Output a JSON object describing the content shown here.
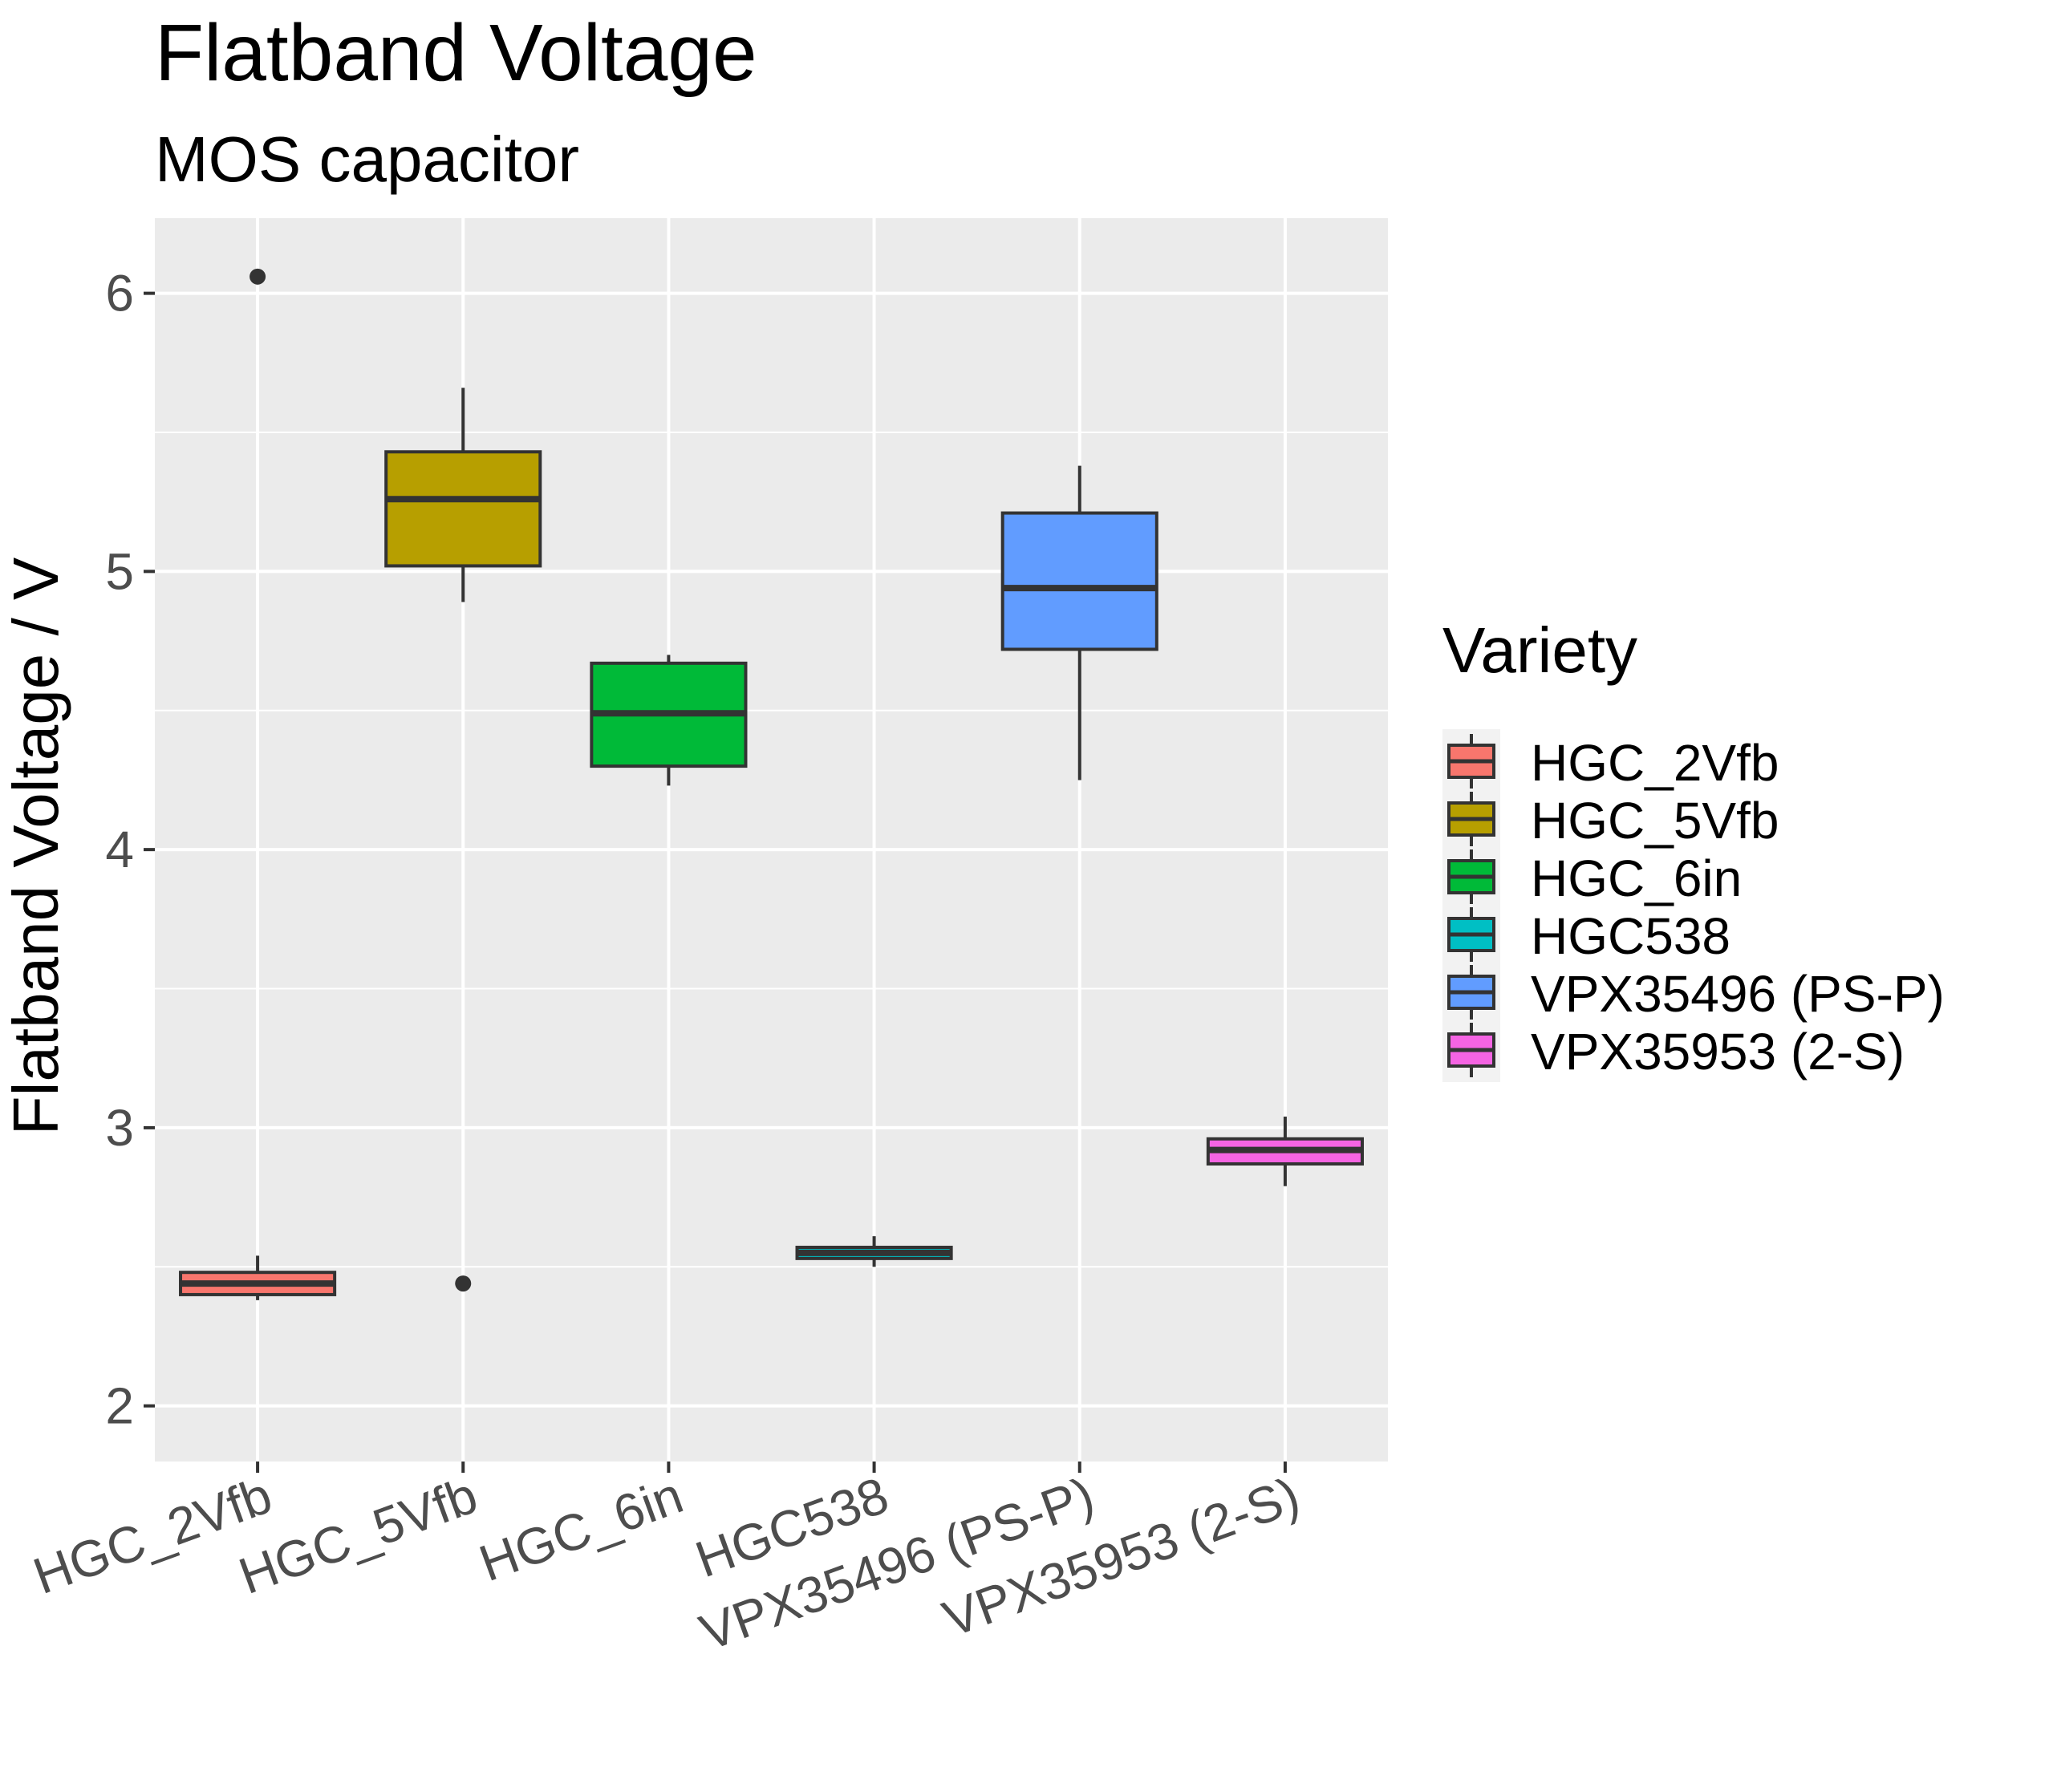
{
  "chart_data": {
    "type": "box",
    "title": "Flatband Voltage",
    "subtitle": "MOS capacitor",
    "xlabel": "",
    "ylabel": "Flatband Voltage / V",
    "ylim": [
      1.8,
      6.27
    ],
    "yticks": [
      2,
      3,
      4,
      5,
      6
    ],
    "grid": true,
    "legend": {
      "title": "Variety",
      "position": "right"
    },
    "categories": [
      "HGC_2Vfb",
      "HGC_5Vfb",
      "HGC_6in",
      "HGC538",
      "VPX35496 (PS-P)",
      "VPX35953 (2-S)"
    ],
    "series": [
      {
        "name": "HGC_2Vfb",
        "color": "#F8766D",
        "whisker_low": 2.38,
        "q1": 2.4,
        "median": 2.44,
        "q3": 2.48,
        "whisker_high": 2.54,
        "outliers": [
          6.06
        ]
      },
      {
        "name": "HGC_5Vfb",
        "color": "#B79F00",
        "whisker_low": 4.89,
        "q1": 5.02,
        "median": 5.26,
        "q3": 5.43,
        "whisker_high": 5.66,
        "outliers": [
          2.44
        ]
      },
      {
        "name": "HGC_6in",
        "color": "#00BA38",
        "whisker_low": 4.23,
        "q1": 4.3,
        "median": 4.49,
        "q3": 4.67,
        "whisker_high": 4.7,
        "outliers": []
      },
      {
        "name": "HGC538",
        "color": "#00BFC4",
        "whisker_low": 2.5,
        "q1": 2.53,
        "median": 2.55,
        "q3": 2.57,
        "whisker_high": 2.61,
        "outliers": []
      },
      {
        "name": "VPX35496 (PS-P)",
        "color": "#619CFF",
        "whisker_low": 4.25,
        "q1": 4.72,
        "median": 4.94,
        "q3": 5.21,
        "whisker_high": 5.38,
        "outliers": []
      },
      {
        "name": "VPX35953 (2-S)",
        "color": "#F564E3",
        "whisker_low": 2.79,
        "q1": 2.87,
        "median": 2.92,
        "q3": 2.96,
        "whisker_high": 3.04,
        "outliers": []
      }
    ]
  }
}
